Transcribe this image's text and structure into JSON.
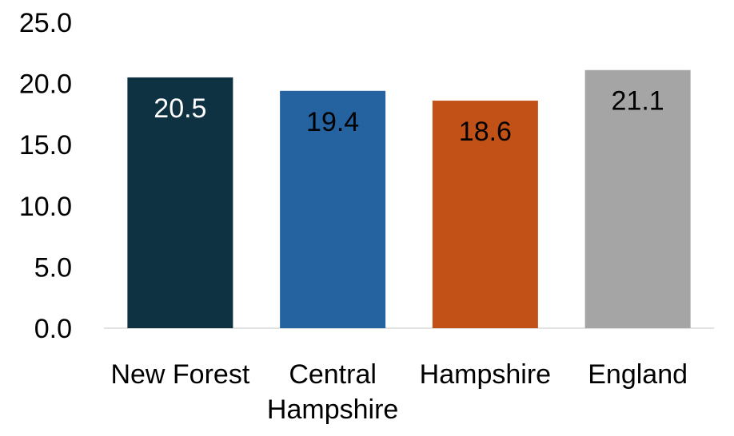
{
  "chart_data": {
    "type": "bar",
    "categories": [
      "New Forest",
      "Central Hampshire",
      "Hampshire",
      "England"
    ],
    "category_lines": [
      [
        "New Forest"
      ],
      [
        "Central",
        "Hampshire"
      ],
      [
        "Hampshire"
      ],
      [
        "England"
      ]
    ],
    "values": [
      20.5,
      19.4,
      18.6,
      21.1
    ],
    "value_labels": [
      "20.5",
      "19.4",
      "18.6",
      "21.1"
    ],
    "ylim": [
      0,
      25
    ],
    "yticks": [
      0,
      5,
      10,
      15,
      20,
      25
    ],
    "ytick_labels": [
      "0.0",
      "5.0",
      "10.0",
      "15.0",
      "20.0",
      "25.0"
    ],
    "title": "",
    "xlabel": "",
    "ylabel": "",
    "grid": false,
    "legend": "none",
    "bar_colors": [
      "#0f3242",
      "#2462a0",
      "#c25118",
      "#a5a5a5"
    ],
    "label_colors": [
      "#ffffff",
      "#000000",
      "#000000",
      "#000000"
    ]
  }
}
